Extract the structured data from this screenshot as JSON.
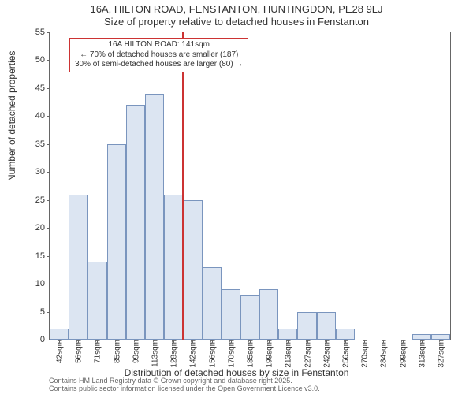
{
  "chart": {
    "type": "histogram",
    "title": "16A, HILTON ROAD, FENSTANTON, HUNTINGDON, PE28 9LJ",
    "subtitle": "Size of property relative to detached houses in Fenstanton",
    "y_label": "Number of detached properties",
    "x_label": "Distribution of detached houses by size in Fenstanton",
    "attribution_line1": "Contains HM Land Registry data © Crown copyright and database right 2025.",
    "attribution_line2": "Contains public sector information licensed under the Open Government Licence v3.0.",
    "y_ticks": [
      0,
      5,
      10,
      15,
      20,
      25,
      30,
      35,
      40,
      45,
      50,
      55
    ],
    "y_min": 0,
    "y_max": 55,
    "x_ticks": [
      "42sqm",
      "56sqm",
      "71sqm",
      "85sqm",
      "99sqm",
      "113sqm",
      "128sqm",
      "142sqm",
      "156sqm",
      "170sqm",
      "185sqm",
      "199sqm",
      "213sqm",
      "227sqm",
      "242sqm",
      "256sqm",
      "270sqm",
      "284sqm",
      "299sqm",
      "313sqm",
      "327sqm"
    ],
    "bars": [
      2,
      26,
      14,
      35,
      42,
      44,
      26,
      25,
      13,
      9,
      8,
      9,
      2,
      5,
      5,
      2,
      0,
      0,
      0,
      1,
      1
    ],
    "bar_fill": "#dce5f2",
    "bar_stroke": "#7a95be",
    "background_color": "#ffffff",
    "border_color": "#666666",
    "reference_line": {
      "position_index": 7,
      "color": "#cc3333"
    },
    "annotation": {
      "line1": "16A HILTON ROAD: 141sqm",
      "line2": "← 70% of detached houses are smaller (187)",
      "line3": "30% of semi-detached houses are larger (80) →",
      "border_color": "#cc3333"
    }
  }
}
